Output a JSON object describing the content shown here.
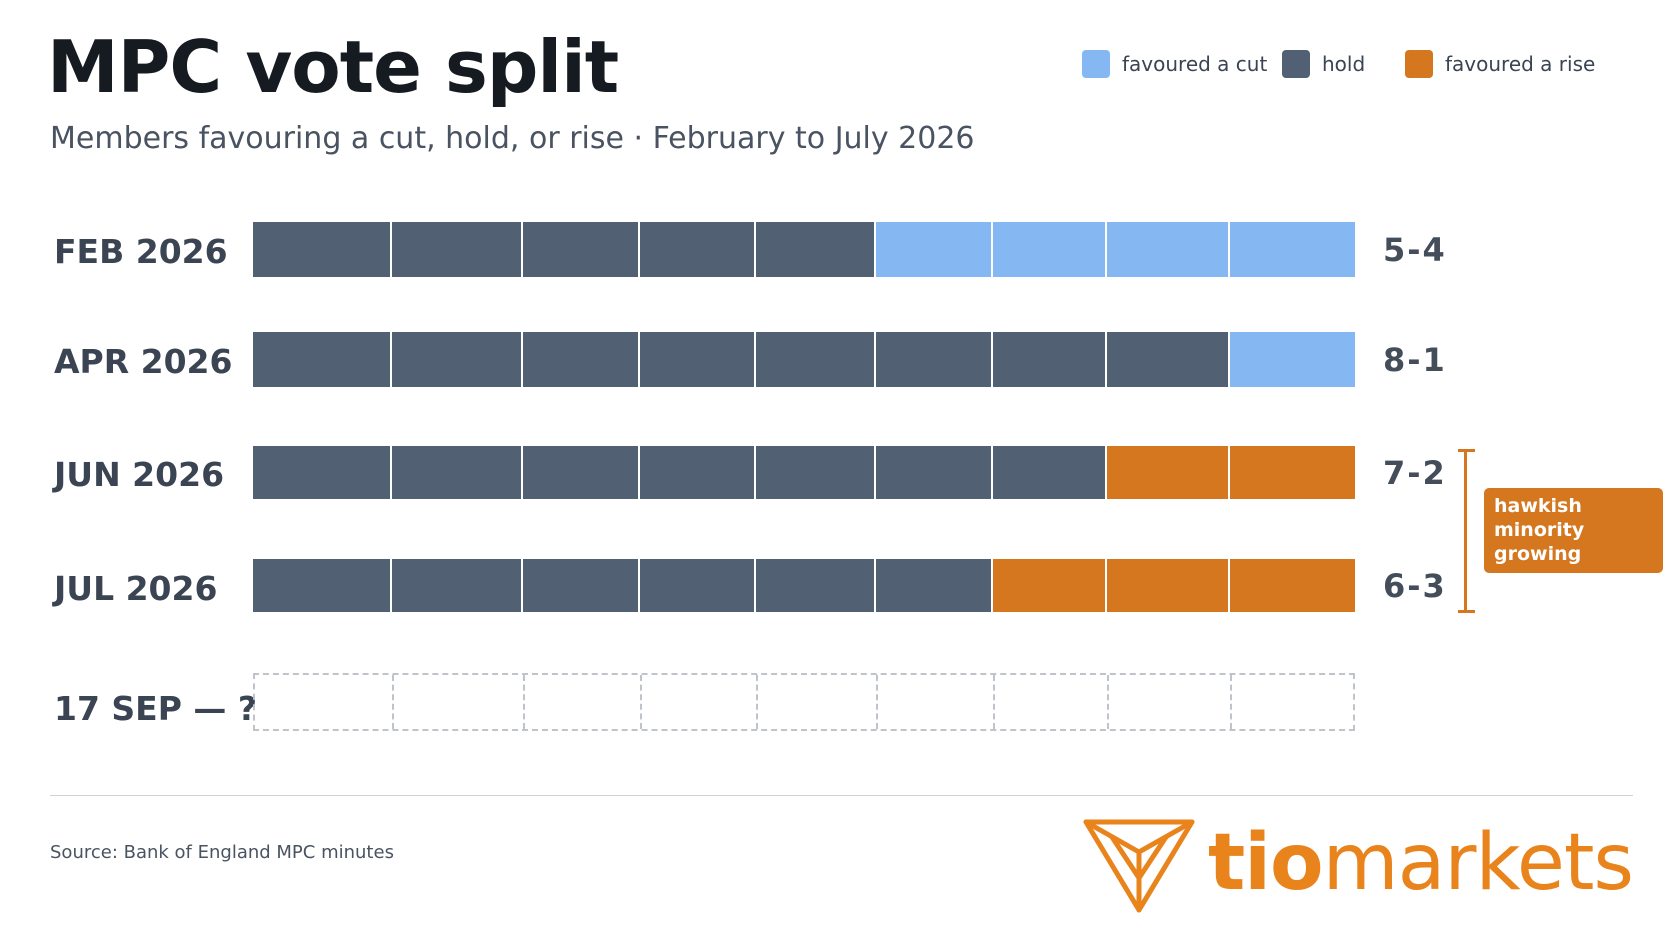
{
  "chart_data": {
    "type": "bar",
    "title": "MPC vote split",
    "subtitle": "Members favouring a cut, hold, or rise · February to July 2026",
    "total_members": 9,
    "legend_position": "top-right",
    "legend": [
      {
        "key": "cut",
        "label": "favoured a cut",
        "color": "#85b8f2"
      },
      {
        "key": "hold",
        "label": "hold",
        "color": "#526073"
      },
      {
        "key": "rise",
        "label": "favoured a rise",
        "color": "#d4771f"
      }
    ],
    "rows": [
      {
        "label": "FEB 2026",
        "hold": 5,
        "cut": 4,
        "rise": 0,
        "result": "5-4"
      },
      {
        "label": "APR 2026",
        "hold": 8,
        "cut": 1,
        "rise": 0,
        "result": "8-1"
      },
      {
        "label": "JUN 2026",
        "hold": 7,
        "cut": 0,
        "rise": 2,
        "result": "7-2"
      },
      {
        "label": "JUL 2026",
        "hold": 6,
        "cut": 0,
        "rise": 3,
        "result": "6-3"
      },
      {
        "label": "17 SEP — ?",
        "hold": 0,
        "cut": 0,
        "rise": 0,
        "result": "",
        "future": true
      }
    ],
    "annotation": "hawkish minority growing"
  },
  "footer": {
    "source": "Source: Bank of England MPC minutes"
  },
  "brand": {
    "logo_icon": "tiomarkets-triangle-icon",
    "name_bold": "tio",
    "name_rest": "markets",
    "color": "#e9831c"
  }
}
